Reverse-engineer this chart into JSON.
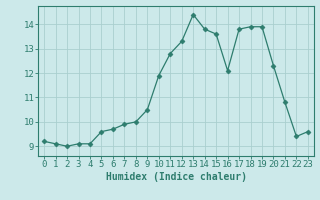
{
  "x": [
    0,
    1,
    2,
    3,
    4,
    5,
    6,
    7,
    8,
    9,
    10,
    11,
    12,
    13,
    14,
    15,
    16,
    17,
    18,
    19,
    20,
    21,
    22,
    23
  ],
  "y": [
    9.2,
    9.1,
    9.0,
    9.1,
    9.1,
    9.6,
    9.7,
    9.9,
    10.0,
    10.5,
    11.9,
    12.8,
    13.3,
    14.4,
    13.8,
    13.6,
    12.1,
    13.8,
    13.9,
    13.9,
    12.3,
    10.8,
    9.4,
    9.6
  ],
  "line_color": "#2e7d6e",
  "marker": "D",
  "marker_size": 2.5,
  "bg_color": "#cce9ea",
  "grid_color": "#aacfcf",
  "xlabel": "Humidex (Indice chaleur)",
  "ylabel_ticks": [
    9,
    10,
    11,
    12,
    13,
    14
  ],
  "ylim": [
    8.6,
    14.75
  ],
  "xlim": [
    -0.5,
    23.5
  ],
  "tick_label_color": "#2e7d6e",
  "xlabel_fontsize": 7.0,
  "tick_fontsize": 6.5,
  "xlabel_fontweight": "bold"
}
